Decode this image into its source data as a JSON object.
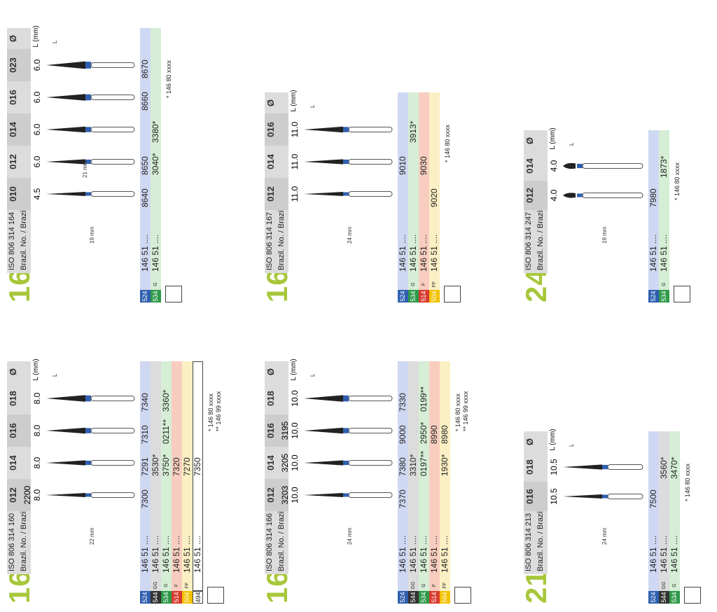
{
  "header": {
    "iso_prefix": "ISO 806 314",
    "brazil_label": "Brazil. No. / Brazil. č.",
    "lmm_label": "L (mm)",
    "dia_label": "Ø",
    "l_label": "L"
  },
  "colors": {
    "524": "#2f5fb0",
    "544": "#333333",
    "534": "#2e9a4a",
    "514": "#d83b2e",
    "504": "#f2c200",
    "494": "#ffffff",
    "bg_524": "#cfd8f2",
    "bg_544": "#dcdcdc",
    "bg_534": "#d5eed5",
    "bg_514": "#f8cdbf",
    "bg_504": "#fbf0c4",
    "bg_494": "#ffffff",
    "model": "#a7c73b"
  },
  "cards": [
    {
      "model": "160",
      "iso": "ISO 806 314 160 XXX ...",
      "sizes": [
        "012",
        "014",
        "016",
        "018"
      ],
      "lengths": [
        "8.0",
        "8.0",
        "8.0",
        "8.0"
      ],
      "extra_row": [
        "2200",
        "",
        "",
        ""
      ],
      "scale": "22 mm",
      "rows": [
        {
          "code": "524",
          "grit": "",
          "ref": "146 51 ....",
          "cells": [
            "7300",
            "7291",
            "7310",
            "7340"
          ]
        },
        {
          "code": "544",
          "grit": "GG",
          "ref": "146 51 ....",
          "cells": [
            "",
            "3530*",
            "",
            ""
          ]
        },
        {
          "code": "534",
          "grit": "G",
          "ref": "146 51 ....",
          "cells": [
            "",
            "3750*",
            "0211**",
            "3360*"
          ]
        },
        {
          "code": "514",
          "grit": "F",
          "ref": "146 51 ....",
          "cells": [
            "",
            "7320",
            "",
            ""
          ]
        },
        {
          "code": "504",
          "grit": "FF",
          "ref": "146 51 ....",
          "cells": [
            "",
            "7270",
            "",
            ""
          ]
        },
        {
          "code": "494",
          "grit": "",
          "ref": "146 51 ....",
          "cells": [
            "",
            "7350",
            "",
            ""
          ]
        }
      ],
      "footnotes": [
        "* 146 80 xxxx",
        "** 146 99 xxxx"
      ]
    },
    {
      "model": "164",
      "iso": "ISO 806 314 164 XXX ...",
      "sizes": [
        "010",
        "012",
        "014",
        "016",
        "023"
      ],
      "lengths": [
        "4.5",
        "6.0",
        "6.0",
        "6.0",
        "6.0"
      ],
      "extra_row": [
        "",
        "",
        "",
        "",
        ""
      ],
      "scale": "19 mm",
      "scale2": "21 mm",
      "rows": [
        {
          "code": "524",
          "grit": "",
          "ref": "146 51 ....",
          "cells": [
            "8640",
            "8650",
            "",
            "8660",
            "8670"
          ]
        },
        {
          "code": "534",
          "grit": "G",
          "ref": "146 51 ....",
          "cells": [
            "",
            "3040*",
            "3380*",
            "",
            ""
          ]
        }
      ],
      "footnotes": [
        "* 146 80 xxxx"
      ]
    },
    {
      "model": "166",
      "iso": "ISO 806 314 166 XXX ...",
      "sizes": [
        "012",
        "014",
        "016",
        "018"
      ],
      "lengths": [
        "10.0",
        "10.0",
        "10.0",
        "10.0"
      ],
      "extra_row": [
        "3203",
        "3205",
        "3195",
        ""
      ],
      "scale": "24 mm",
      "rows": [
        {
          "code": "524",
          "grit": "",
          "ref": "146 51 ....",
          "cells": [
            "7370",
            "7380",
            "9000",
            "7330"
          ]
        },
        {
          "code": "544",
          "grit": "GG",
          "ref": "146 51 ....",
          "cells": [
            "",
            "3310*",
            "",
            ""
          ]
        },
        {
          "code": "534",
          "grit": "G",
          "ref": "146 51 ....",
          "cells": [
            "",
            "0197**",
            "2950*",
            "0199**"
          ]
        },
        {
          "code": "514",
          "grit": "F",
          "ref": "146 51 ....",
          "cells": [
            "",
            "",
            "8990",
            ""
          ]
        },
        {
          "code": "504",
          "grit": "FF",
          "ref": "146 51 ....",
          "cells": [
            "",
            "1930*",
            "8980",
            ""
          ]
        }
      ],
      "footnotes": [
        "* 146 80 xxxx",
        "** 146 99 xxxx"
      ]
    },
    {
      "model": "167",
      "iso": "ISO 806 314 167 XXX ...",
      "sizes": [
        "012",
        "014",
        "016"
      ],
      "lengths": [
        "11.0",
        "11.0",
        "11.0"
      ],
      "extra_row": [
        "",
        "",
        ""
      ],
      "scale": "24 mm",
      "rows": [
        {
          "code": "524",
          "grit": "",
          "ref": "146 51 ....",
          "cells": [
            "",
            "9010",
            ""
          ]
        },
        {
          "code": "534",
          "grit": "G",
          "ref": "146 51 ....",
          "cells": [
            "",
            "",
            "3913*"
          ]
        },
        {
          "code": "514",
          "grit": "F",
          "ref": "146 51 ....",
          "cells": [
            "",
            "9030",
            ""
          ]
        },
        {
          "code": "504",
          "grit": "FF",
          "ref": "146 51 ....",
          "cells": [
            "9020",
            "",
            ""
          ]
        }
      ],
      "footnotes": [
        "* 146 80 xxxx"
      ]
    },
    {
      "model": "213",
      "iso": "ISO 806 314 213 XXX ...",
      "sizes": [
        "016",
        "018"
      ],
      "lengths": [
        "10.5",
        "10.5"
      ],
      "extra_row": [
        "",
        ""
      ],
      "scale": "24 mm",
      "rows": [
        {
          "code": "524",
          "grit": "",
          "ref": "146 51 ....",
          "cells": [
            "7500",
            ""
          ]
        },
        {
          "code": "544",
          "grit": "GG",
          "ref": "146 51 ....",
          "cells": [
            "",
            "3560*"
          ]
        },
        {
          "code": "534",
          "grit": "G",
          "ref": "146 51 ....",
          "cells": [
            "",
            "3470*"
          ]
        }
      ],
      "footnotes": [
        "* 146 80 xxxx"
      ]
    },
    {
      "model": "247",
      "iso": "ISO 806 314 247 XXX ...",
      "sizes": [
        "012",
        "014"
      ],
      "lengths": [
        "4.0",
        "4.0"
      ],
      "extra_row": [
        "",
        ""
      ],
      "scale": "19 mm",
      "rows": [
        {
          "code": "524",
          "grit": "",
          "ref": "146 51 ....",
          "cells": [
            "7980",
            ""
          ]
        },
        {
          "code": "534",
          "grit": "G",
          "ref": "146 51 ....",
          "cells": [
            "",
            "1873*"
          ]
        }
      ],
      "footnotes": [
        "* 146 80 xxxx"
      ]
    }
  ]
}
